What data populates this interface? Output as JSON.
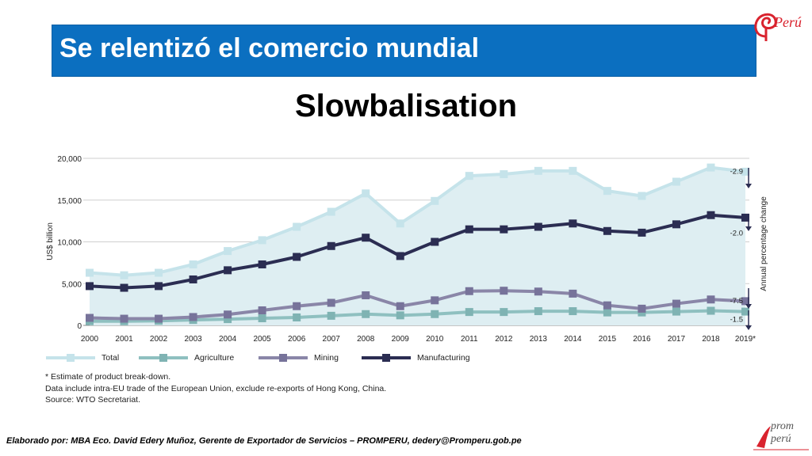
{
  "slide": {
    "title": "Se relentizó el comercio mundial",
    "subtitle": "Slowbalisation",
    "footer": "Elaborado por: MBA Eco. David Edery Muñoz, Gerente de Exportador de Servicios – PROMPERU, dedery@Promperu.gob.pe",
    "logo_top_text": "Perú",
    "logo_bottom_text_1": "prom",
    "logo_bottom_text_2": "perú"
  },
  "chart_data": {
    "type": "line",
    "ylabel": "US$ billion",
    "right_axis_label": "Annual percentage change",
    "ylim": [
      0,
      20000
    ],
    "yticks": [
      "0",
      "5,000",
      "10,000",
      "15,000",
      "20,000"
    ],
    "grid": true,
    "categories": [
      "2000",
      "2001",
      "2002",
      "2003",
      "2004",
      "2005",
      "2006",
      "2007",
      "2008",
      "2009",
      "2010",
      "2011",
      "2012",
      "2013",
      "2014",
      "2015",
      "2016",
      "2017",
      "2018",
      "2019*"
    ],
    "series": [
      {
        "name": "Total",
        "color": "#c5e3ea",
        "style": "area",
        "values": [
          6300,
          6000,
          6300,
          7300,
          8900,
          10200,
          11800,
          13600,
          15800,
          12200,
          14900,
          17900,
          18100,
          18500,
          18500,
          16100,
          15500,
          17200,
          18900,
          18400
        ]
      },
      {
        "name": "Agriculture",
        "color": "#8fc0c0",
        "values": [
          500,
          500,
          550,
          650,
          750,
          850,
          950,
          1150,
          1350,
          1200,
          1350,
          1600,
          1600,
          1700,
          1700,
          1550,
          1550,
          1650,
          1750,
          1650
        ]
      },
      {
        "name": "Mining",
        "color": "#8a86a8",
        "values": [
          900,
          800,
          800,
          1000,
          1300,
          1800,
          2300,
          2700,
          3600,
          2300,
          3000,
          4100,
          4150,
          4050,
          3800,
          2400,
          2000,
          2600,
          3100,
          2900
        ]
      },
      {
        "name": "Manufacturing",
        "color": "#2b2d52",
        "values": [
          4700,
          4500,
          4700,
          5500,
          6600,
          7300,
          8200,
          9500,
          10500,
          8300,
          10000,
          11500,
          11500,
          11800,
          12200,
          11300,
          11100,
          12100,
          13200,
          12900
        ]
      }
    ],
    "annotations": [
      "-2.9",
      "-2.0",
      "-7.5",
      "-1.5"
    ],
    "notes": [
      "* Estimate of product break-down.",
      "Data include intra-EU trade of the European Union, exclude re-exports of Hong Kong, China.",
      "Source: WTO Secretariat."
    ]
  },
  "colors": {
    "title_bar": "#0b6fc0",
    "total_line": "#c5e3ea",
    "total_fill": "#deeef2",
    "peru_red": "#d9232e"
  }
}
